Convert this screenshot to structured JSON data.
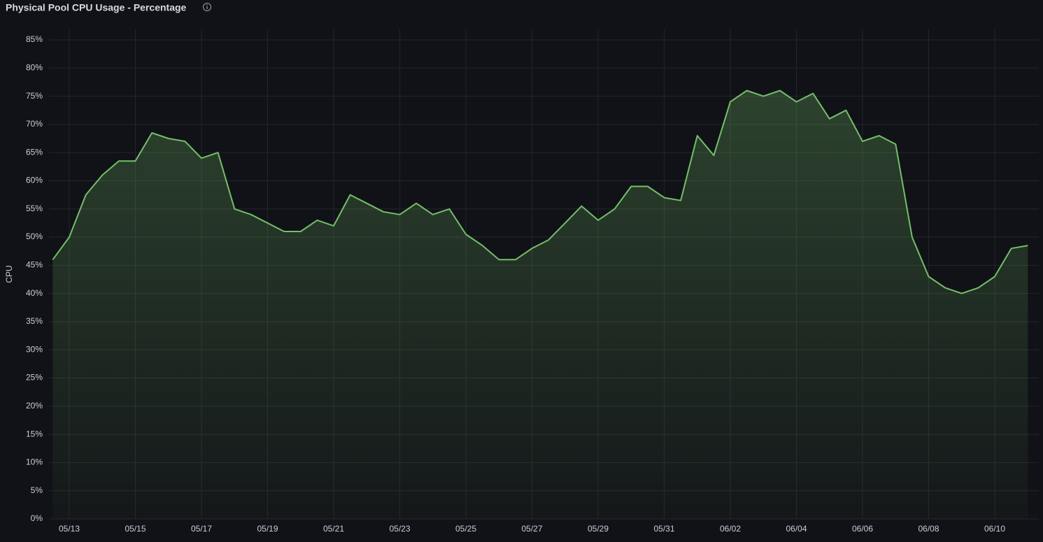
{
  "chart_data": {
    "type": "line",
    "title": "Physical Pool CPU Usage - Percentage",
    "y_label": "CPU",
    "series": [
      {
        "name": "CPU",
        "color": "#73bf69",
        "values": [
          46,
          50,
          57.5,
          61,
          63.5,
          63.5,
          68.5,
          67.5,
          67,
          64,
          65,
          55,
          54,
          52.5,
          51,
          51,
          53,
          52,
          57.5,
          56,
          54.5,
          54,
          56,
          54,
          55,
          50.5,
          48.5,
          46,
          46,
          48,
          49.5,
          52.5,
          55.5,
          53,
          55,
          59,
          59,
          57,
          56.5,
          68,
          64.5,
          74,
          76,
          75,
          76,
          74,
          75.5,
          71,
          72.5,
          67,
          68,
          66.5,
          50,
          43,
          41,
          40,
          41,
          43,
          48,
          48.5
        ]
      }
    ],
    "categories": [
      null,
      "05/13",
      null,
      null,
      null,
      "05/15",
      null,
      null,
      null,
      "05/17",
      null,
      null,
      null,
      "05/19",
      null,
      null,
      null,
      "05/21",
      null,
      null,
      null,
      "05/23",
      null,
      null,
      null,
      "05/25",
      null,
      null,
      null,
      "05/27",
      null,
      null,
      null,
      "05/29",
      null,
      null,
      null,
      "05/31",
      null,
      null,
      null,
      "06/02",
      null,
      null,
      null,
      "06/04",
      null,
      null,
      null,
      "06/06",
      null,
      null,
      null,
      "06/08",
      null,
      null,
      null,
      "06/10",
      null,
      null
    ],
    "ylim": [
      0,
      85
    ],
    "yticks": [
      {
        "value": 0,
        "label": "0%"
      },
      {
        "value": 5,
        "label": "5%"
      },
      {
        "value": 10,
        "label": "10%"
      },
      {
        "value": 15,
        "label": "15%"
      },
      {
        "value": 20,
        "label": "20%"
      },
      {
        "value": 25,
        "label": "25%"
      },
      {
        "value": 30,
        "label": "30%"
      },
      {
        "value": 35,
        "label": "35%"
      },
      {
        "value": 40,
        "label": "40%"
      },
      {
        "value": 45,
        "label": "45%"
      },
      {
        "value": 50,
        "label": "50%"
      },
      {
        "value": 55,
        "label": "55%"
      },
      {
        "value": 60,
        "label": "60%"
      },
      {
        "value": 65,
        "label": "65%"
      },
      {
        "value": 70,
        "label": "70%"
      },
      {
        "value": 75,
        "label": "75%"
      },
      {
        "value": 80,
        "label": "80%"
      },
      {
        "value": 85,
        "label": "85%"
      }
    ],
    "grid": true
  }
}
